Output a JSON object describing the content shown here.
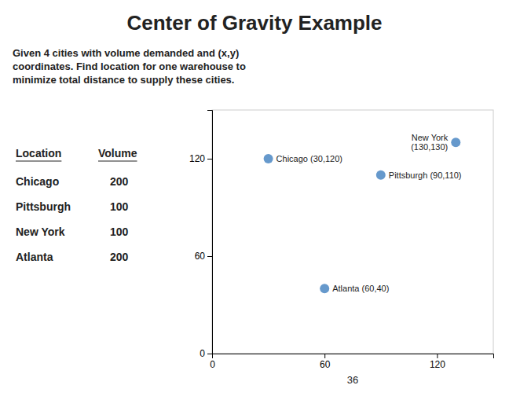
{
  "chart_data": {
    "type": "scatter",
    "title": "Center of Gravity Example",
    "subtitle": "Given 4 cities with volume demanded and (x,y)\ncoordinates. Find location for one warehouse to\nminimize total distance to supply these cities.",
    "categories": [
      "Chicago",
      "Pittsburgh",
      "New York",
      "Atlanta"
    ],
    "x": [
      30,
      90,
      130,
      60
    ],
    "values": [
      120,
      110,
      130,
      40
    ],
    "color": "#6699cc",
    "table_header": [
      "Location",
      "Volume"
    ],
    "volumes": [
      200,
      100,
      100,
      200
    ],
    "annotations": [
      {
        "text": "Chicago (30,120)",
        "x": 30,
        "y": 120
      },
      {
        "text": "Pittsburgh (90,110)",
        "x": 90,
        "y": 110
      },
      {
        "text": "New York\n(130,130)",
        "x": 130,
        "y": 130
      },
      {
        "text": "Atlanta (60,40)",
        "x": 60,
        "y": 40
      }
    ],
    "xlabel": "36",
    "xlim": [
      0,
      150
    ],
    "ylim": [
      0,
      150
    ],
    "xticks": [
      0,
      60,
      120
    ],
    "yticks": [
      0,
      60,
      120
    ]
  }
}
